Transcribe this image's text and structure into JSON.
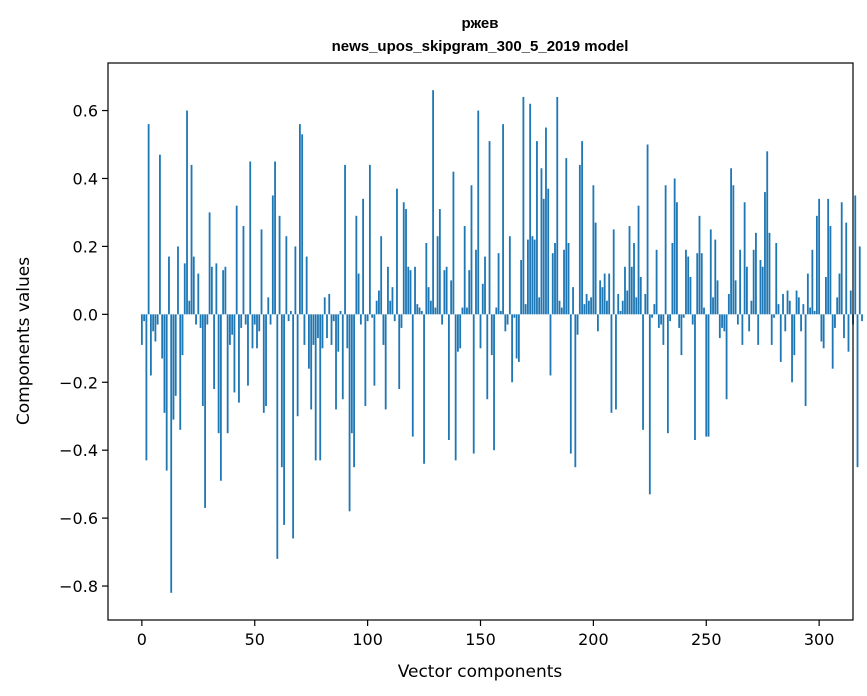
{
  "chart_data": {
    "type": "bar",
    "title": "ржев",
    "subtitle": "news_upos_skipgram_300_5_2019 model",
    "xlabel": "Vector components",
    "ylabel": "Components values",
    "xlim": [
      -15,
      315
    ],
    "ylim": [
      -0.9,
      0.74
    ],
    "xticks": [
      0,
      50,
      100,
      150,
      200,
      250,
      300
    ],
    "yticks": [
      -0.8,
      -0.6,
      -0.4,
      -0.2,
      0.0,
      0.2,
      0.4,
      0.6
    ],
    "ytick_labels": [
      "−0.8",
      "−0.6",
      "−0.4",
      "−0.2",
      "0.0",
      "0.2",
      "0.4",
      "0.6"
    ],
    "grid": false,
    "bar_color": "#1f77b4",
    "values": [
      -0.09,
      -0.02,
      -0.43,
      0.56,
      -0.18,
      -0.05,
      -0.08,
      -0.03,
      0.47,
      -0.13,
      -0.29,
      -0.46,
      0.17,
      -0.82,
      -0.31,
      -0.24,
      0.2,
      -0.34,
      -0.12,
      0.15,
      0.6,
      0.04,
      0.44,
      0.17,
      -0.03,
      0.12,
      -0.04,
      -0.27,
      -0.57,
      -0.03,
      0.3,
      0.14,
      -0.22,
      0.15,
      -0.35,
      -0.49,
      0.13,
      0.14,
      -0.35,
      -0.09,
      -0.06,
      -0.23,
      0.32,
      -0.26,
      -0.04,
      0.26,
      -0.03,
      -0.21,
      0.45,
      -0.1,
      -0.03,
      -0.1,
      -0.05,
      0.25,
      -0.29,
      -0.27,
      0.05,
      -0.03,
      0.35,
      0.45,
      -0.72,
      0.29,
      -0.45,
      -0.62,
      0.23,
      -0.02,
      0.01,
      -0.66,
      0.2,
      -0.3,
      0.56,
      0.53,
      -0.09,
      0.17,
      -0.16,
      -0.28,
      -0.09,
      -0.43,
      -0.07,
      -0.43,
      -0.1,
      0.05,
      -0.07,
      0.06,
      -0.09,
      -0.02,
      -0.28,
      -0.11,
      0.01,
      -0.25,
      0.44,
      -0.1,
      -0.58,
      -0.35,
      -0.45,
      0.29,
      0.12,
      -0.03,
      0.34,
      -0.27,
      -0.02,
      0.44,
      -0.01,
      -0.21,
      0.04,
      0.07,
      0.23,
      -0.09,
      -0.28,
      0.14,
      0.04,
      0.08,
      -0.02,
      0.37,
      -0.22,
      -0.04,
      0.33,
      0.31,
      0.14,
      0.13,
      -0.36,
      0.14,
      0.03,
      0.02,
      0.01,
      -0.44,
      0.21,
      0.08,
      0.04,
      0.66,
      0.02,
      0.23,
      0.31,
      -0.03,
      0.13,
      0.14,
      -0.37,
      0.1,
      0.42,
      -0.43,
      -0.11,
      -0.1,
      0.02,
      0.26,
      0.02,
      0.13,
      0.38,
      -0.41,
      0.19,
      0.6,
      -0.1,
      0.09,
      0.17,
      -0.25,
      0.51,
      -0.12,
      -0.4,
      0.02,
      0.18,
      0.01,
      0.56,
      -0.05,
      -0.03,
      0.23,
      -0.2,
      -0.01,
      -0.13,
      -0.14,
      0.16,
      0.64,
      0.03,
      0.22,
      0.62,
      0.23,
      0.22,
      0.51,
      0.05,
      0.43,
      0.34,
      0.55,
      0.37,
      -0.18,
      0.18,
      0.21,
      0.64,
      0.04,
      0.02,
      0.19,
      0.46,
      0.21,
      -0.41,
      0.08,
      -0.45,
      -0.06,
      0.44,
      0.51,
      0.03,
      0.06,
      0.04,
      0.05,
      0.38,
      0.27,
      -0.05,
      0.1,
      0.08,
      0.12,
      0.04,
      0.12,
      -0.29,
      0.25,
      -0.28,
      0.06,
      0.01,
      0.04,
      0.14,
      0.07,
      0.26,
      0.14,
      0.21,
      0.05,
      0.32,
      0.11,
      -0.34,
      0.06,
      0.5,
      -0.53,
      -0.01,
      0.03,
      0.19,
      -0.04,
      -0.03,
      -0.09,
      0.38,
      -0.35,
      -0.02,
      0.21,
      0.4,
      0.33,
      -0.04,
      -0.12,
      -0.01,
      0.19,
      0.17,
      0.11,
      -0.03,
      -0.37,
      0.18,
      0.29,
      0.18,
      0.02,
      -0.36,
      -0.36,
      0.25,
      0.05,
      0.22,
      0.1,
      -0.07,
      -0.04,
      -0.05,
      -0.25,
      0.06,
      0.43,
      0.38,
      0.1,
      -0.03,
      0.19,
      -0.09,
      0.33,
      0.14,
      -0.05,
      0.04,
      0.19,
      0.24,
      -0.09,
      0.16,
      0.14,
      0.36,
      0.48,
      0.24,
      -0.09,
      -0.01,
      0.21,
      0.03,
      -0.14,
      0.06,
      -0.05,
      0.07,
      0.04,
      -0.2,
      -0.12,
      0.07,
      0.05,
      -0.05,
      0.03,
      -0.27,
      0.12,
      0.02,
      0.19,
      0.01,
      0.29,
      0.34,
      -0.08,
      -0.1,
      0.11,
      0.34,
      0.26,
      -0.16,
      -0.04,
      0.05,
      0.12,
      0.33,
      -0.07,
      0.27,
      -0.11,
      0.07,
      -0.03,
      0.35,
      -0.45,
      0.2,
      -0.02
    ]
  }
}
